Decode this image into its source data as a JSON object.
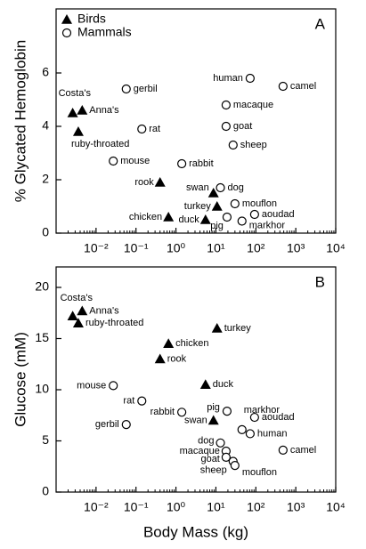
{
  "charts": [
    {
      "type": "scatter",
      "panel_label": "A",
      "ylabel": "% Glycated Hemoglobin",
      "xscale": "log",
      "xlim": [
        0.001,
        10000
      ],
      "xticks": [
        {
          "value": 0.01,
          "label": "10⁻²"
        },
        {
          "value": 0.1,
          "label": "10⁻¹"
        },
        {
          "value": 1,
          "label": "10⁰"
        },
        {
          "value": 10,
          "label": "10¹"
        },
        {
          "value": 100,
          "label": "10²"
        },
        {
          "value": 1000,
          "label": "10³"
        },
        {
          "value": 10000,
          "label": "10⁴"
        }
      ],
      "ylim": [
        0,
        8.4
      ],
      "yticks": [
        0,
        2,
        4,
        6
      ],
      "legend": "upper left",
      "series": [
        {
          "name": "Birds",
          "marker": "triangle",
          "color": "#000000",
          "labels": [
            "Costa's",
            "Anna's",
            "ruby-throated",
            "rook",
            "chicken",
            "duck",
            "swan",
            "turkey"
          ],
          "x": [
            0.0026,
            0.0045,
            0.0036,
            0.4,
            0.65,
            5.5,
            8.7,
            10.7
          ],
          "values": [
            4.5,
            4.6,
            3.8,
            1.9,
            0.6,
            0.5,
            1.5,
            1.0
          ]
        },
        {
          "name": "Mammals",
          "marker": "circle",
          "color": "#000000",
          "labels": [
            "gerbil",
            "rat",
            "mouse",
            "rabbit",
            "human",
            "camel",
            "macaque",
            "goat",
            "sheep",
            "dog",
            "mouflon",
            "aoudad",
            "markhor",
            "pig"
          ],
          "x": [
            0.057,
            0.14,
            0.027,
            1.4,
            72,
            480,
            18,
            18,
            27,
            13,
            30,
            93,
            45,
            19
          ],
          "values": [
            5.4,
            3.9,
            2.7,
            2.6,
            5.8,
            5.5,
            4.8,
            4.0,
            3.3,
            1.7,
            1.1,
            0.7,
            0.45,
            0.6
          ]
        }
      ]
    },
    {
      "type": "scatter",
      "panel_label": "B",
      "ylabel": "Glucose (mM)",
      "xlabel": "Body Mass (kg)",
      "xscale": "log",
      "xlim": [
        0.001,
        10000
      ],
      "xticks": [
        {
          "value": 0.01,
          "label": "10⁻²"
        },
        {
          "value": 0.1,
          "label": "10⁻¹"
        },
        {
          "value": 1,
          "label": "10⁰"
        },
        {
          "value": 10,
          "label": "10¹"
        },
        {
          "value": 100,
          "label": "10²"
        },
        {
          "value": 1000,
          "label": "10³"
        },
        {
          "value": 10000,
          "label": "10⁴"
        }
      ],
      "ylim": [
        0,
        22
      ],
      "yticks": [
        0,
        5,
        10,
        15,
        20
      ],
      "series": [
        {
          "marker": "triangle",
          "color": "#000000",
          "labels": [
            "Costa's",
            "Anna's",
            "ruby-throated",
            "rook",
            "chicken",
            "duck",
            "swan",
            "turkey"
          ],
          "x": [
            0.0026,
            0.0045,
            0.0036,
            0.4,
            0.65,
            5.5,
            8.7,
            10.7
          ],
          "values": [
            17.2,
            17.7,
            16.5,
            13,
            14.5,
            10.5,
            7,
            16
          ]
        },
        {
          "marker": "circle",
          "color": "#000000",
          "labels": [
            "gerbil",
            "rat",
            "mouse",
            "rabbit",
            "human",
            "camel",
            "macaque",
            "goat",
            "sheep",
            "dog",
            "mouflon",
            "aoudad",
            "markhor",
            "pig"
          ],
          "x": [
            0.057,
            0.14,
            0.027,
            1.4,
            72,
            480,
            18,
            18,
            27,
            13,
            30,
            93,
            45,
            19
          ],
          "values": [
            6.6,
            8.9,
            10.4,
            7.8,
            5.7,
            4.1,
            4.0,
            3.4,
            3.0,
            4.8,
            2.6,
            7.3,
            6.1,
            7.9
          ]
        }
      ]
    }
  ]
}
